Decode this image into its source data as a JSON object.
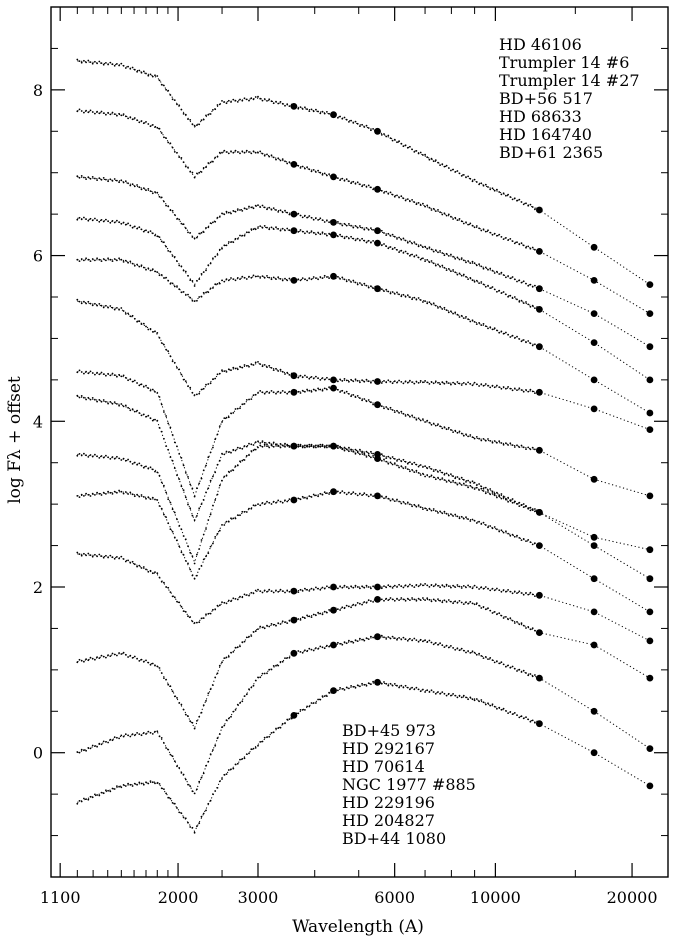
{
  "chart_data": {
    "type": "scatter",
    "title": "",
    "xlabel": "Wavelength (A)",
    "ylabel": "log Fλ + offset",
    "xscale": "log",
    "xlim": [
      1050,
      24000
    ],
    "ylim": [
      -1.5,
      9.0
    ],
    "xticks": [
      1100,
      2000,
      3000,
      6000,
      10000,
      20000
    ],
    "xtick_labels": [
      "1100",
      "2000",
      "3000",
      "6000",
      "10000",
      "20000"
    ],
    "yticks": [
      0,
      2,
      4,
      6,
      8
    ],
    "ytick_labels": [
      "0",
      "2",
      "4",
      "6",
      "8"
    ],
    "legend_top_right": [
      "HD 46106",
      "Trumpler 14 #6",
      "Trumpler 14 #27",
      "BD+56 517",
      "HD 68633",
      "HD 164740",
      "BD+61 2365"
    ],
    "legend_bottom": [
      "BD+45 973",
      "HD 292167",
      "HD 70614",
      "NGC 1977 #885",
      "HD 229196",
      "HD 204827",
      "BD+44 1080"
    ],
    "series": [
      {
        "x": [
          1200,
          1500,
          1800,
          2175,
          2500,
          3000,
          3600,
          4400,
          5500,
          7000,
          9000,
          12500,
          16500,
          21900
        ],
        "y": [
          8.35,
          8.3,
          8.15,
          7.55,
          7.85,
          7.9,
          7.8,
          7.7,
          7.5,
          7.2,
          6.9,
          6.55,
          6.1,
          5.65
        ]
      },
      {
        "x": [
          1200,
          1500,
          1800,
          2175,
          2500,
          3000,
          3600,
          4400,
          5500,
          7000,
          9000,
          12500,
          16500,
          21900
        ],
        "y": [
          7.75,
          7.7,
          7.55,
          6.95,
          7.25,
          7.25,
          7.1,
          6.95,
          6.8,
          6.6,
          6.35,
          6.05,
          5.7,
          5.3
        ]
      },
      {
        "x": [
          1200,
          1500,
          1800,
          2175,
          2500,
          3000,
          3600,
          4400,
          5500,
          7000,
          9000,
          12500,
          16500,
          21900
        ],
        "y": [
          6.95,
          6.9,
          6.75,
          6.2,
          6.5,
          6.6,
          6.5,
          6.4,
          6.3,
          6.1,
          5.9,
          5.6,
          5.3,
          4.9
        ]
      },
      {
        "x": [
          1200,
          1500,
          1800,
          2175,
          2500,
          3000,
          3600,
          4400,
          5500,
          7000,
          9000,
          12500,
          16500,
          21900
        ],
        "y": [
          6.45,
          6.4,
          6.25,
          5.65,
          6.1,
          6.35,
          6.3,
          6.25,
          6.15,
          5.95,
          5.7,
          5.35,
          4.95,
          4.5
        ]
      },
      {
        "x": [
          1200,
          1500,
          1800,
          2175,
          2500,
          3000,
          3600,
          4400,
          5500,
          7000,
          9000,
          12500,
          16500,
          21900
        ],
        "y": [
          5.95,
          5.95,
          5.8,
          5.45,
          5.7,
          5.75,
          5.7,
          5.75,
          5.6,
          5.45,
          5.2,
          4.9,
          4.5,
          4.1
        ]
      },
      {
        "x": [
          1200,
          1500,
          1800,
          2175,
          2500,
          3000,
          3600,
          4400,
          5500,
          7000,
          9000,
          12500,
          16500,
          21900
        ],
        "y": [
          5.45,
          5.35,
          5.05,
          4.3,
          4.6,
          4.7,
          4.55,
          4.5,
          4.48,
          4.47,
          4.45,
          4.35,
          4.15,
          3.9
        ]
      },
      {
        "x": [
          1200,
          1500,
          1800,
          2175,
          2500,
          3000,
          3600,
          4400,
          5500,
          7000,
          9000,
          12500,
          16500,
          21900
        ],
        "y": [
          4.6,
          4.55,
          4.35,
          3.1,
          4.0,
          4.35,
          4.35,
          4.4,
          4.2,
          4.0,
          3.8,
          3.65,
          3.3,
          3.1
        ]
      },
      {
        "x": [
          1200,
          1500,
          1800,
          2175,
          2500,
          3000,
          3600,
          4400,
          5500,
          7000,
          9000,
          12500,
          16500,
          21900
        ],
        "y": [
          4.3,
          4.2,
          4.0,
          2.8,
          3.6,
          3.75,
          3.7,
          3.7,
          3.6,
          3.45,
          3.25,
          2.9,
          2.5,
          2.1
        ]
      },
      {
        "x": [
          1200,
          1500,
          1800,
          2175,
          2500,
          3000,
          3600,
          4400,
          5500,
          7000,
          9000,
          12500,
          16500,
          21900
        ],
        "y": [
          3.6,
          3.55,
          3.4,
          2.3,
          3.3,
          3.7,
          3.7,
          3.7,
          3.55,
          3.35,
          3.2,
          2.9,
          2.6,
          2.45
        ]
      },
      {
        "x": [
          1200,
          1500,
          1800,
          2175,
          2500,
          3000,
          3600,
          4400,
          5500,
          7000,
          9000,
          12500,
          16500,
          21900
        ],
        "y": [
          3.1,
          3.15,
          3.05,
          2.1,
          2.75,
          3.0,
          3.05,
          3.15,
          3.1,
          2.95,
          2.8,
          2.5,
          2.1,
          1.7
        ]
      },
      {
        "x": [
          1200,
          1500,
          1800,
          2175,
          2500,
          3000,
          3600,
          4400,
          5500,
          7000,
          9000,
          12500,
          16500,
          21900
        ],
        "y": [
          2.4,
          2.35,
          2.15,
          1.55,
          1.8,
          1.95,
          1.95,
          2.0,
          2.0,
          2.02,
          2.0,
          1.9,
          1.7,
          1.35
        ]
      },
      {
        "x": [
          1200,
          1500,
          1800,
          2175,
          2500,
          3000,
          3600,
          4400,
          5500,
          7000,
          9000,
          12500,
          16500,
          21900
        ],
        "y": [
          1.1,
          1.2,
          1.05,
          0.3,
          1.1,
          1.5,
          1.6,
          1.72,
          1.85,
          1.85,
          1.8,
          1.45,
          1.3,
          0.9
        ]
      },
      {
        "x": [
          1200,
          1500,
          1800,
          2175,
          2500,
          3000,
          3600,
          4400,
          5500,
          7000,
          9000,
          12500,
          16500,
          21900
        ],
        "y": [
          0.0,
          0.2,
          0.25,
          -0.5,
          0.3,
          0.9,
          1.2,
          1.3,
          1.4,
          1.35,
          1.2,
          0.9,
          0.5,
          0.05
        ]
      },
      {
        "x": [
          1200,
          1500,
          1800,
          2175,
          2500,
          3000,
          3600,
          4400,
          5500,
          7000,
          9000,
          12500,
          16500,
          21900
        ],
        "y": [
          -0.6,
          -0.4,
          -0.35,
          -0.95,
          -0.3,
          0.1,
          0.45,
          0.75,
          0.85,
          0.75,
          0.65,
          0.35,
          0.0,
          -0.4
        ]
      }
    ]
  }
}
